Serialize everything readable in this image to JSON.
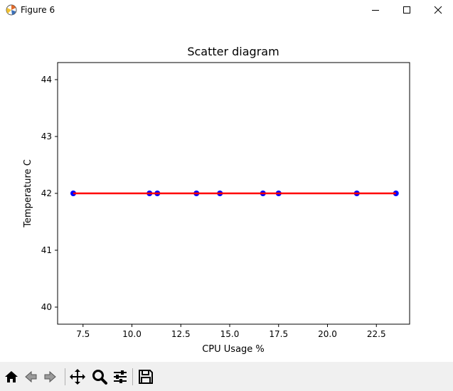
{
  "window": {
    "title": "Figure 6",
    "controls": [
      "minimize-icon",
      "maximize-icon",
      "close-icon"
    ]
  },
  "toolbar": {
    "buttons": [
      "home-icon",
      "back-icon",
      "forward-icon",
      "pan-icon",
      "zoom-icon",
      "configure-subplots-icon",
      "save-icon"
    ]
  },
  "chart_data": {
    "type": "scatter",
    "title": "Scatter diagram",
    "xlabel": "CPU Usage %",
    "ylabel": "Temperature C",
    "xlim": [
      6.2,
      24.2
    ],
    "ylim": [
      39.7,
      44.3
    ],
    "xticks": [
      "7.5",
      "10.0",
      "12.5",
      "15.0",
      "17.5",
      "20.0",
      "22.5"
    ],
    "xtick_values": [
      7.5,
      10.0,
      12.5,
      15.0,
      17.5,
      20.0,
      22.5
    ],
    "yticks": [
      "40",
      "41",
      "42",
      "43",
      "44"
    ],
    "ytick_values": [
      40,
      41,
      42,
      43,
      44
    ],
    "grid": false,
    "points": {
      "x": [
        7.0,
        10.9,
        11.3,
        13.3,
        14.5,
        16.7,
        17.5,
        21.5,
        23.5
      ],
      "y": [
        42,
        42,
        42,
        42,
        42,
        42,
        42,
        42,
        42
      ],
      "color": "#0000ff"
    },
    "fit_line": {
      "x": [
        7.0,
        23.5
      ],
      "y": [
        42,
        42
      ],
      "color": "#ff0000"
    }
  }
}
